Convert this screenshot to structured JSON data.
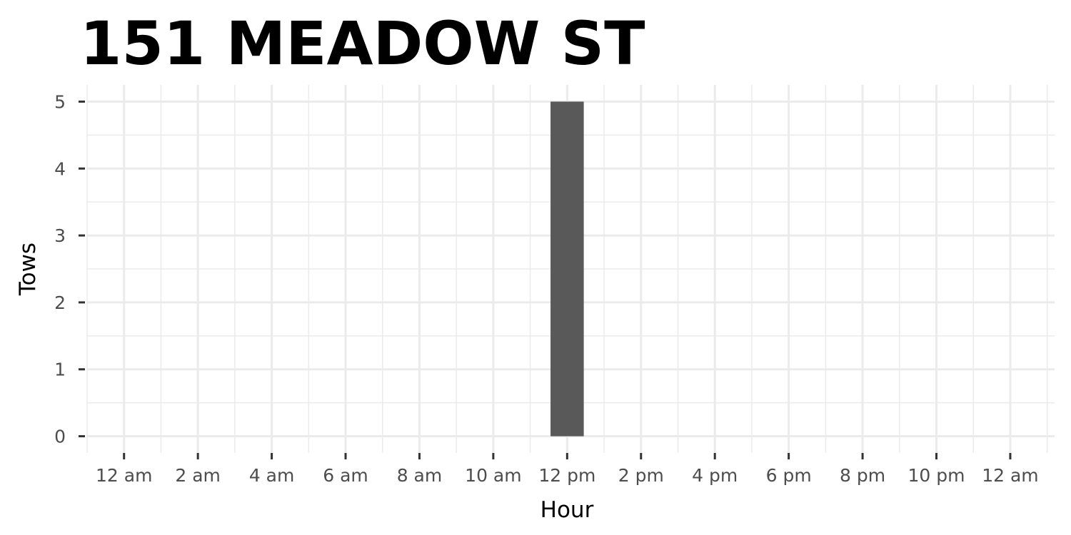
{
  "chart_data": {
    "type": "bar",
    "title": "151 MEADOW ST",
    "xlabel": "Hour",
    "ylabel": "Tows",
    "x_tick_labels": [
      "12 am",
      "2 am",
      "4 am",
      "6 am",
      "8 am",
      "10 am",
      "12 pm",
      "2 pm",
      "4 pm",
      "6 pm",
      "8 pm",
      "10 pm",
      "12 am"
    ],
    "x_ticks": [
      0,
      2,
      4,
      6,
      8,
      10,
      12,
      14,
      16,
      18,
      20,
      22,
      24
    ],
    "xlim": [
      -1,
      25.2
    ],
    "y_ticks": [
      0,
      1,
      2,
      3,
      4,
      5
    ],
    "ylim": [
      -0.25,
      5.25
    ],
    "grid": true,
    "bar_color": "#595959",
    "data": [
      {
        "hour": 12,
        "label": "12 pm",
        "value": 5
      }
    ]
  }
}
